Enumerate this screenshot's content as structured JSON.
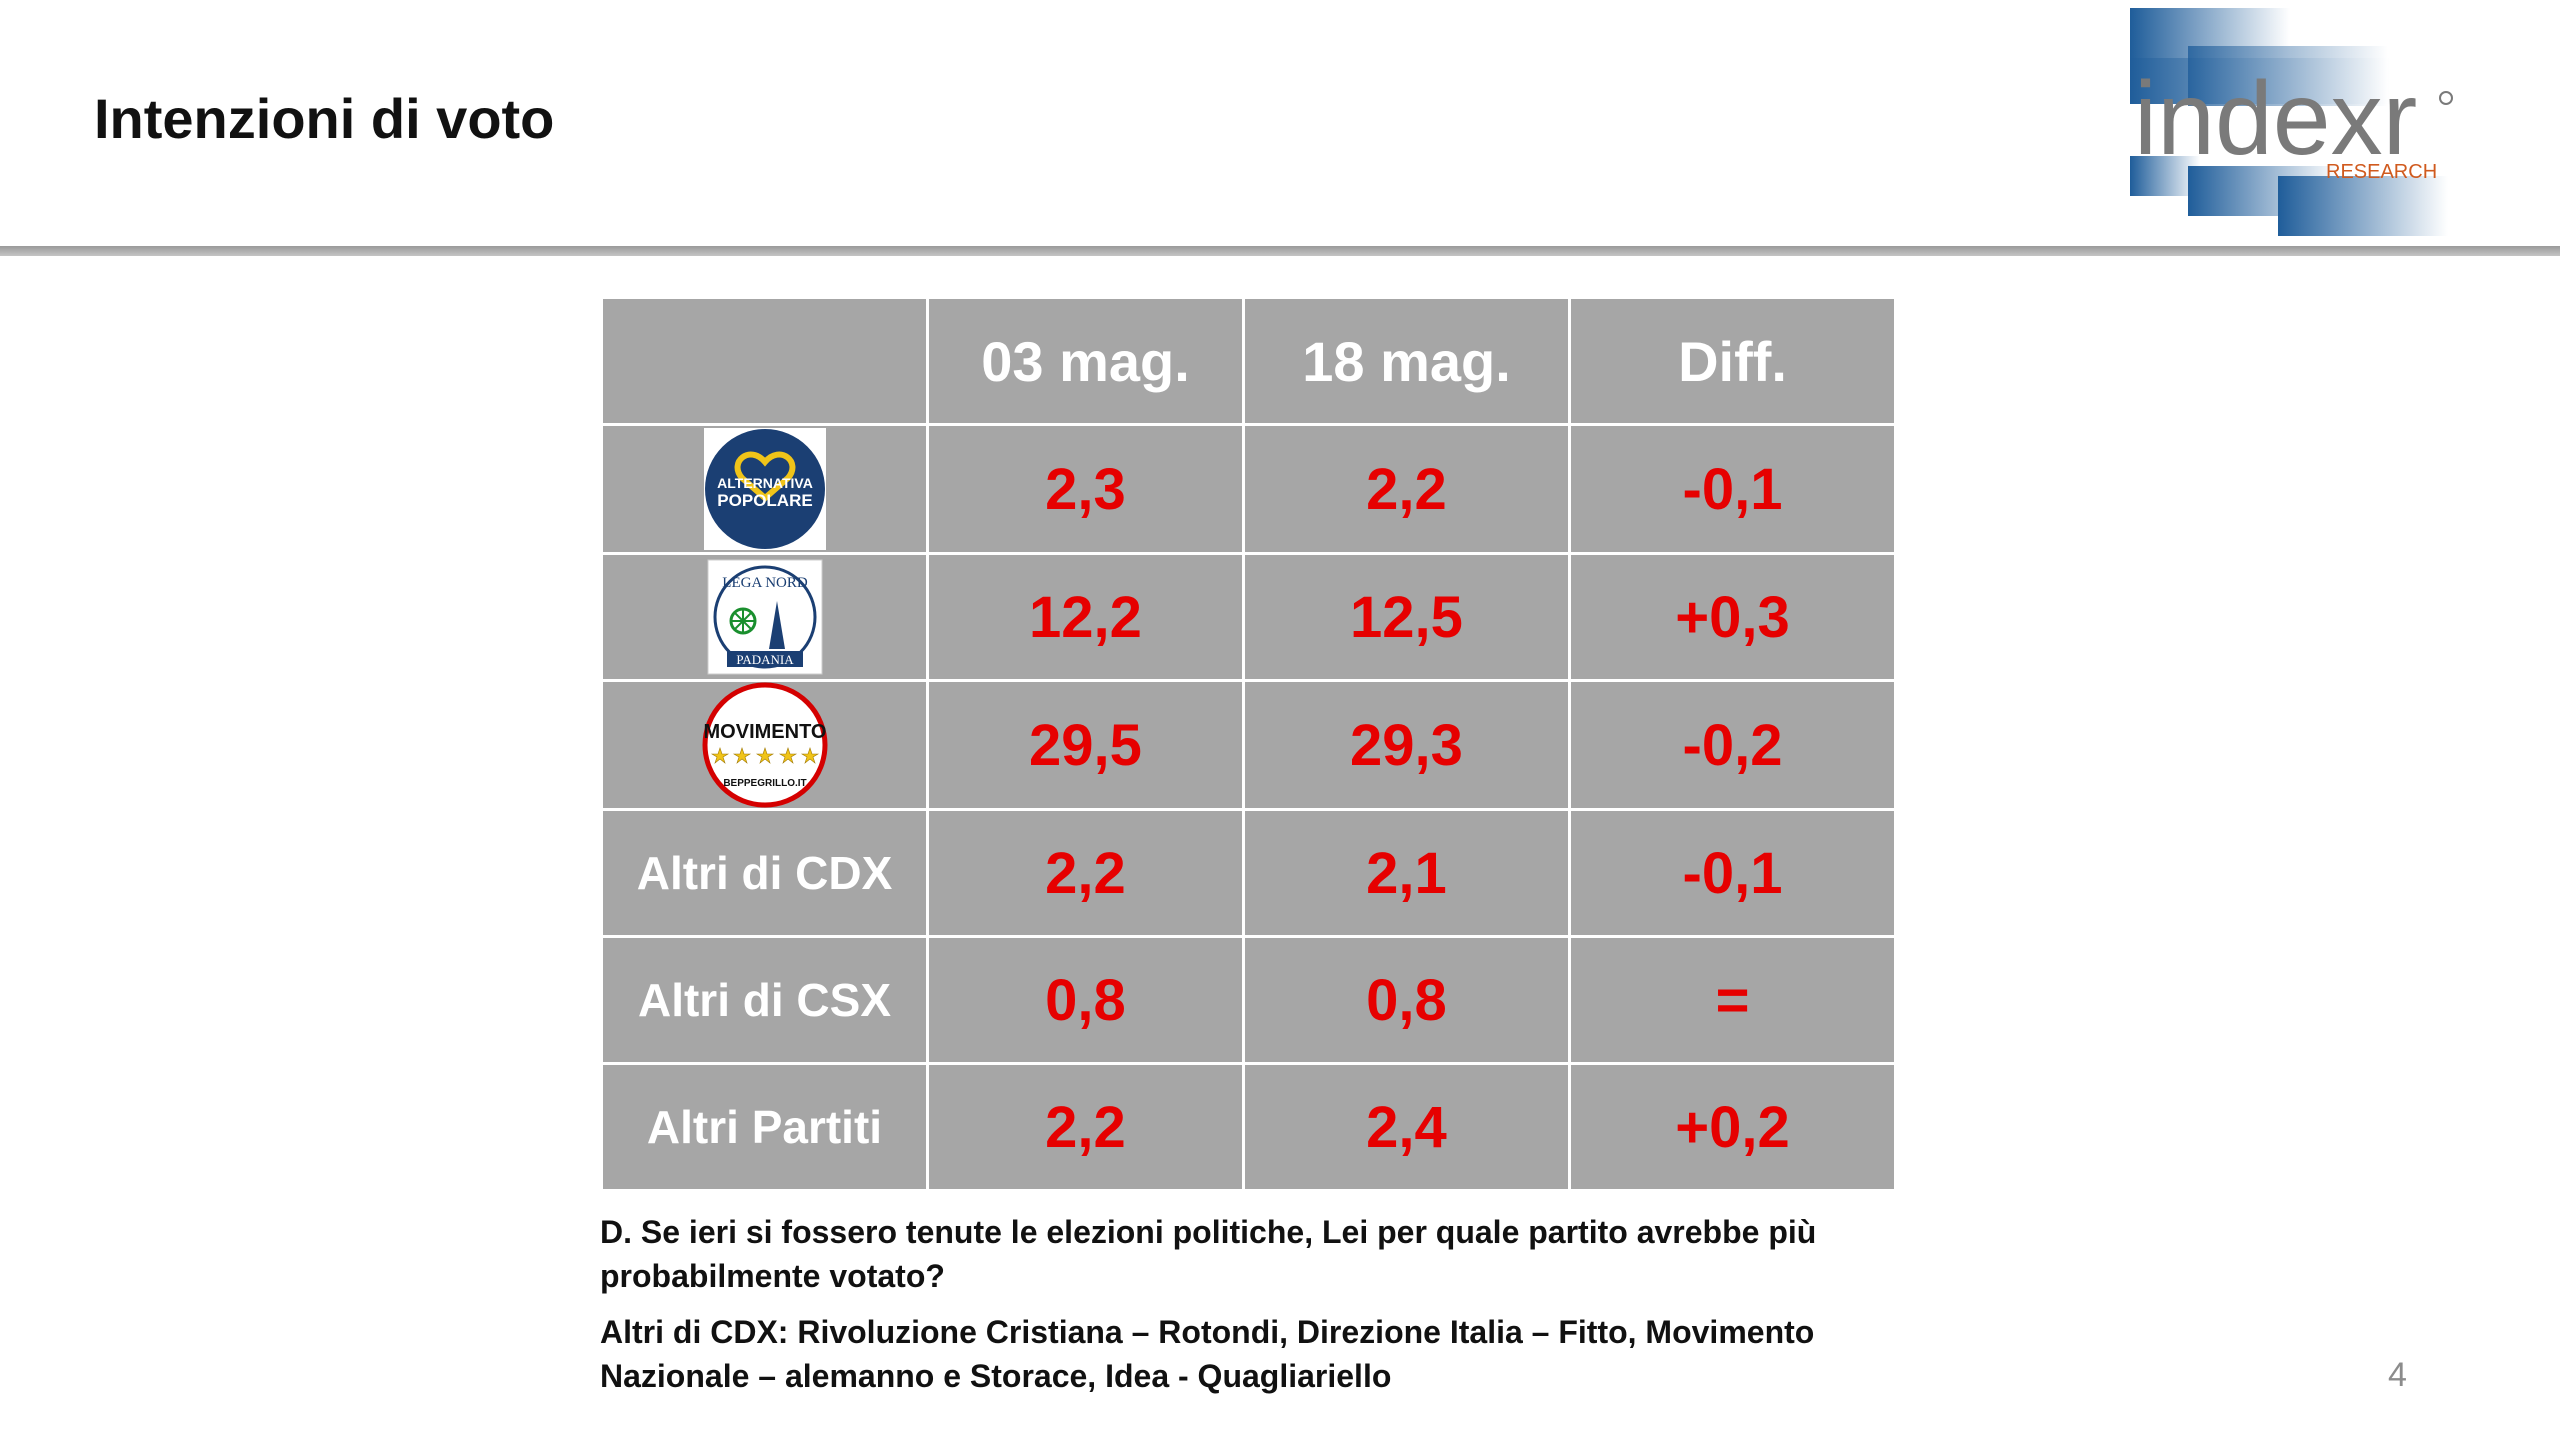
{
  "header": {
    "title": "Intenzioni di voto",
    "logo": {
      "brand": "indexr",
      "tagline": "RESEARCH",
      "colors": {
        "blue": "#1f5d9a",
        "gray": "#7a7a7a",
        "orange": "#d05a1e"
      }
    }
  },
  "table": {
    "headers": [
      "",
      "03 mag.",
      "18 mag.",
      "Diff."
    ],
    "rows": [
      {
        "party_logo": "alternativa-popolare-logo",
        "logo_text": [
          "ALTERNATIVA",
          "POPOLARE"
        ],
        "values": [
          "2,3",
          "2,2",
          "-0,1"
        ]
      },
      {
        "party_logo": "lega-nord-logo",
        "logo_text": [
          "LEGA NORD",
          "PADANIA"
        ],
        "values": [
          "12,2",
          "12,5",
          "+0,3"
        ]
      },
      {
        "party_logo": "movimento-5-stelle-logo",
        "logo_text": [
          "MOVIMENTO",
          "BEPPEGRILLO.IT"
        ],
        "values": [
          "29,5",
          "29,3",
          "-0,2"
        ]
      },
      {
        "label": "Altri di CDX",
        "values": [
          "2,2",
          "2,1",
          "-0,1"
        ]
      },
      {
        "label": "Altri di CSX",
        "values": [
          "0,8",
          "0,8",
          "="
        ]
      },
      {
        "label": "Altri Partiti",
        "values": [
          "2,2",
          "2,4",
          "+0,2"
        ]
      }
    ],
    "colors": {
      "cell_bg": "#a6a6a6",
      "value": "#e60000",
      "header_text": "#ffffff"
    }
  },
  "notes": {
    "question": "D. Se ieri si fossero tenute le elezioni politiche, Lei per quale partito avrebbe più probabilmente votato?",
    "altri_cdx": "Altri di CDX: Rivoluzione Cristiana – Rotondi, Direzione Italia – Fitto, Movimento Nazionale – alemanno e Storace, Idea - Quagliariello"
  },
  "page_number": "4"
}
